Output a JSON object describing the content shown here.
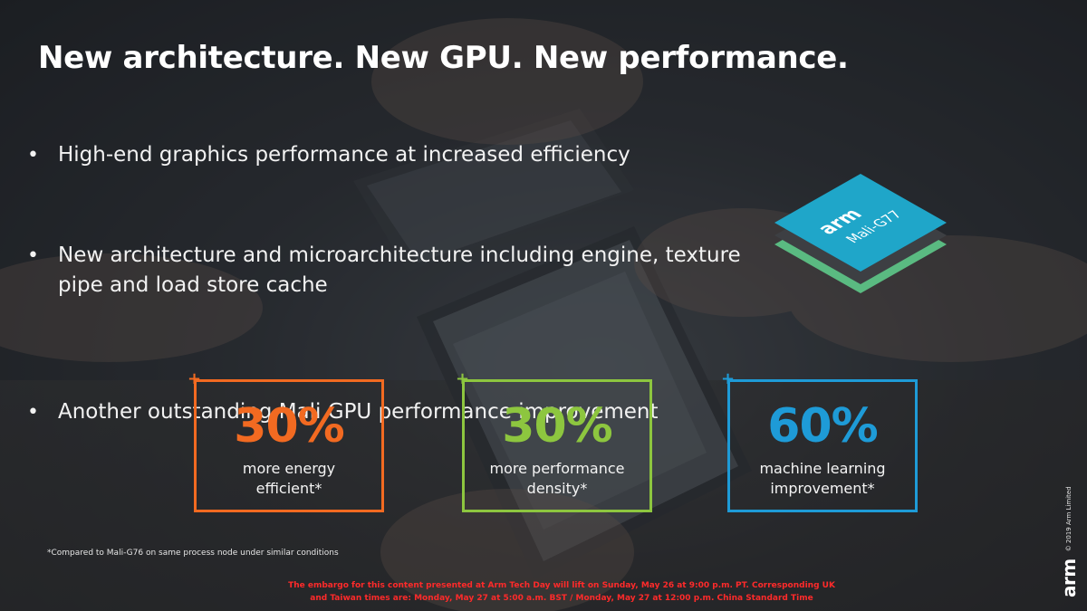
{
  "title": "New architecture. New GPU. New performance.",
  "bullets": [
    "High-end graphics performance at increased efficiency",
    "New architecture and microarchitecture including engine, texture pipe and load store cache",
    "Another outstanding Mali GPU performance improvement"
  ],
  "chip": {
    "brand": "arm",
    "model": "Mali-G77",
    "top_color": "#1fa6c9",
    "layer_color": "#5ec98a"
  },
  "stats": [
    {
      "value": "30%",
      "label_line1": "more energy",
      "label_line2": "efficient*",
      "color": "#f26a21"
    },
    {
      "value": "30%",
      "label_line1": "more performance",
      "label_line2": "density*",
      "color": "#8dc63f"
    },
    {
      "value": "60%",
      "label_line1": "machine learning",
      "label_line2": "improvement*",
      "color": "#1e9bd7"
    }
  ],
  "plus_symbol": "+",
  "footnote": "*Compared to Mali-G76 on same process node under similar conditions",
  "embargo_line1": "The embargo for this content presented at Arm Tech Day will lift on Sunday, May 26 at 9:00 p.m. PT. Corresponding UK",
  "embargo_line2": "and Taiwan times are: Monday, May 27 at 5:00 a.m. BST / Monday, May 27 at 12:00 p.m. China Standard Time",
  "side_logo": {
    "brand": "arm",
    "copyright": "© 2019 Arm Limited"
  }
}
